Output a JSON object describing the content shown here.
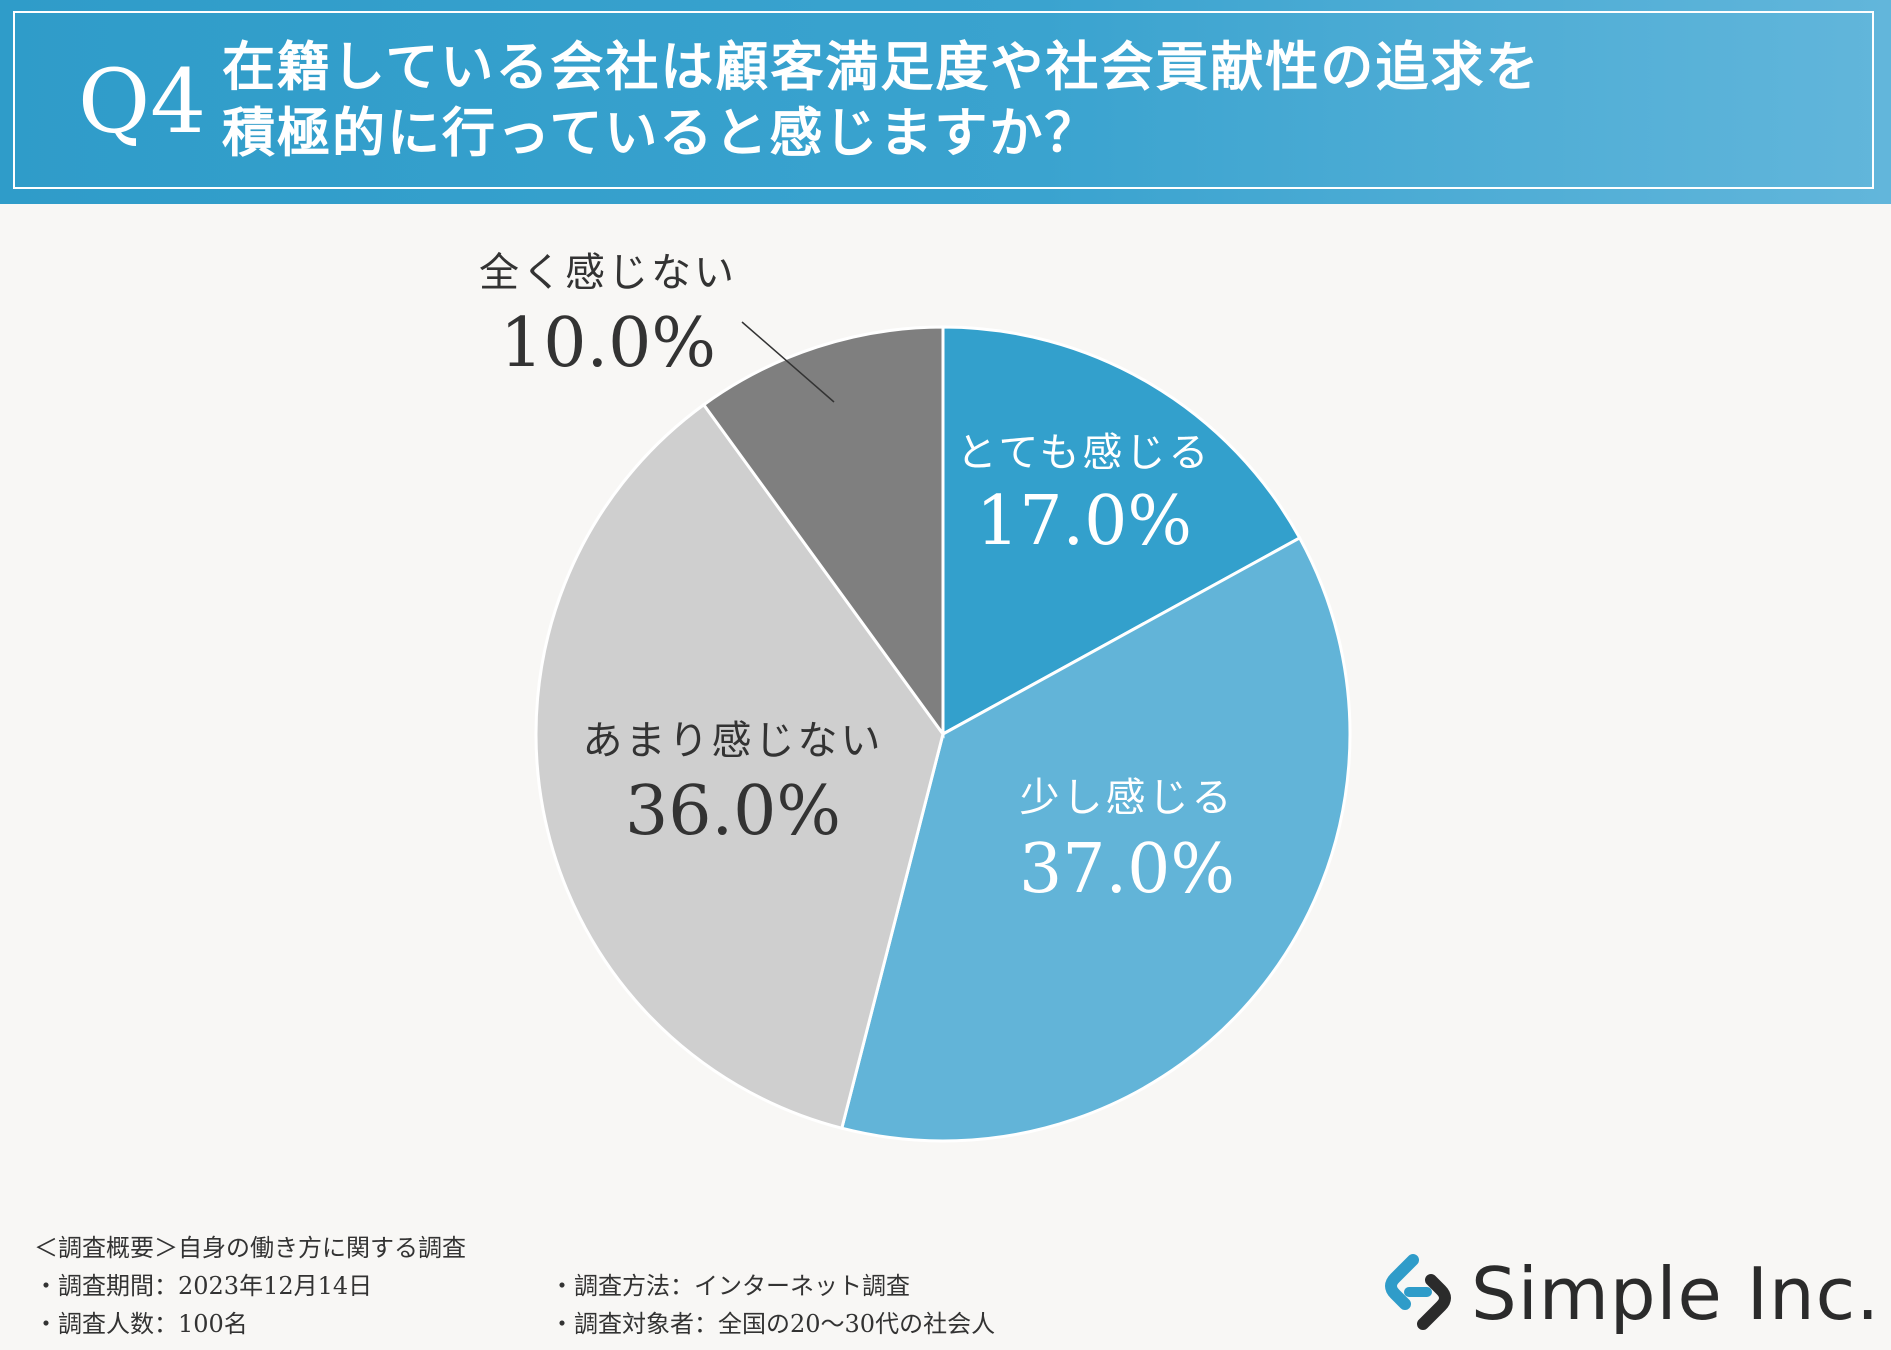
{
  "header": {
    "question_number": "Q4",
    "title_line1": "在籍している会社は顧客満足度や社会貢献性の追求を",
    "title_line2": "積極的に行っていると感じますか？"
  },
  "colors": {
    "header_bg": "#34a0cc",
    "slice_1": "#33a0cc",
    "slice_2": "#62b4d8",
    "slice_3": "#cfcfcf",
    "slice_4": "#7f7f7f"
  },
  "chart_data": {
    "type": "pie",
    "title": "",
    "start_angle_deg": 0,
    "direction": "clockwise",
    "slices": [
      {
        "label": "とても感じる",
        "value": 17.0,
        "value_label": "17.0%",
        "color": "#33a0cc",
        "label_color": "#ffffff"
      },
      {
        "label": "少し感じる",
        "value": 37.0,
        "value_label": "37.0%",
        "color": "#62b4d8",
        "label_color": "#ffffff"
      },
      {
        "label": "あまり感じない",
        "value": 36.0,
        "value_label": "36.0%",
        "color": "#cfcfcf",
        "label_color": "#333333"
      },
      {
        "label": "全く感じない",
        "value": 10.0,
        "value_label": "10.0%",
        "color": "#7f7f7f",
        "label_color": "#333333"
      }
    ]
  },
  "footer": {
    "summary": "＜調査概要＞自身の働き方に関する調査",
    "period": "・調査期間：2023年12月14日",
    "count": "・調査人数：100名",
    "method": "・調査方法：インターネット調査",
    "target": "・調査対象者：全国の20～30代の社会人"
  },
  "logo": {
    "text": "Simple Inc.",
    "icon": "chain-link-icon"
  }
}
